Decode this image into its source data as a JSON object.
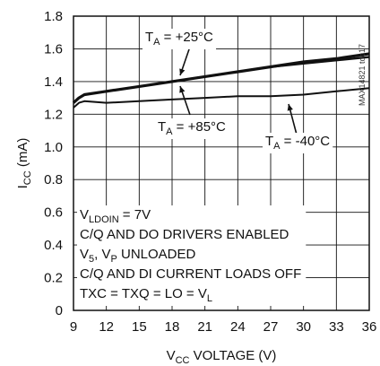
{
  "chart_data": {
    "type": "line",
    "title": "",
    "xlabel": {
      "pre": "V",
      "sub": "CC",
      "post": " VOLTAGE (V)"
    },
    "ylabel": {
      "pre": "I",
      "sub": "CC",
      "post": " (mA)"
    },
    "xlim": [
      9,
      36
    ],
    "ylim": [
      0,
      1.8
    ],
    "xticks": [
      9,
      12,
      15,
      18,
      21,
      24,
      27,
      30,
      33,
      36
    ],
    "yticks": [
      0,
      0.2,
      0.4,
      0.6,
      0.8,
      1.0,
      1.2,
      1.4,
      1.6,
      1.8
    ],
    "xtick_labels": [
      "9",
      "12",
      "15",
      "18",
      "21",
      "24",
      "27",
      "30",
      "33",
      "36"
    ],
    "ytick_labels": [
      "0",
      "0.2",
      "0.4",
      "0.6",
      "0.8",
      "1.0",
      "1.2",
      "1.4",
      "1.6",
      "1.8"
    ],
    "grid": true,
    "series": [
      {
        "x": [
          9,
          9.5,
          10,
          12,
          15,
          18,
          21,
          24,
          27,
          30,
          33,
          36
        ],
        "y": [
          1.27,
          1.3,
          1.32,
          1.34,
          1.37,
          1.4,
          1.43,
          1.46,
          1.49,
          1.52,
          1.54,
          1.57
        ]
      },
      {
        "x": [
          9,
          9.5,
          10,
          12,
          15,
          18,
          21,
          24,
          27,
          30,
          33,
          36
        ],
        "y": [
          1.27,
          1.3,
          1.32,
          1.34,
          1.37,
          1.4,
          1.43,
          1.46,
          1.49,
          1.51,
          1.53,
          1.55
        ]
      },
      {
        "x": [
          9,
          9.5,
          10,
          12,
          15,
          18,
          21,
          24,
          27,
          30,
          33,
          36
        ],
        "y": [
          1.24,
          1.27,
          1.28,
          1.27,
          1.28,
          1.29,
          1.3,
          1.31,
          1.31,
          1.32,
          1.34,
          1.36
        ]
      }
    ],
    "annotations": [
      {
        "text_pre": "T",
        "sub": "A",
        "text_post": " = +25°C"
      },
      {
        "text_pre": "T",
        "sub": "A",
        "text_post": " = +85°C"
      },
      {
        "text_pre": "T",
        "sub": "A",
        "text_post": " = -40°C"
      }
    ],
    "conditions": [
      {
        "pre": "V",
        "sub": "LDOIN",
        "post": " = 7V"
      },
      {
        "pre": "C/Q AND DO DRIVERS ENABLED",
        "sub": "",
        "post": ""
      },
      {
        "pre": "V",
        "sub": "5",
        "post": ", V",
        "sub2": "P",
        "post2": " UNLOADED"
      },
      {
        "pre": "C/Q AND DI CURRENT LOADS OFF",
        "sub": "",
        "post": ""
      },
      {
        "pre": "TXC = TXQ = LO = V",
        "sub": "L",
        "post": ""
      }
    ],
    "watermark": "MAX14821 toc17"
  }
}
